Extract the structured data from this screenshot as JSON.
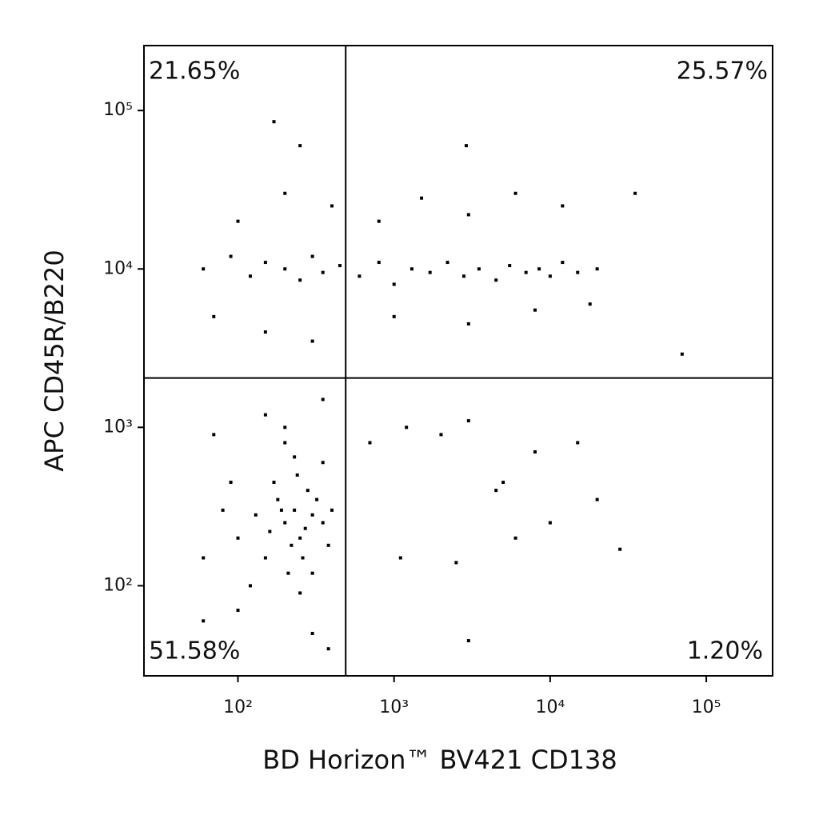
{
  "chart_data": {
    "type": "scatter",
    "x_label": "BD Horizon™ BV421 CD138",
    "y_label": "APC CD45R/B220",
    "log_x": true,
    "log_y": true,
    "grid": false,
    "color": "#000000",
    "xlim": [
      25,
      266000
    ],
    "ylim": [
      27,
      257000
    ],
    "xticks": [
      {
        "value": 100,
        "label": "10²"
      },
      {
        "value": 1000,
        "label": "10³"
      },
      {
        "value": 10000,
        "label": "10⁴"
      },
      {
        "value": 100000,
        "label": "10⁵"
      }
    ],
    "yticks": [
      {
        "value": 100,
        "label": "10²"
      },
      {
        "value": 1000,
        "label": "10³"
      },
      {
        "value": 10000,
        "label": "10⁴"
      },
      {
        "value": 100000,
        "label": "10⁵"
      }
    ],
    "gates": {
      "x": 490,
      "y": 2050
    },
    "quadrant_labels": {
      "upper_left": "21.65%",
      "upper_right": "25.57%",
      "lower_left": "51.58%",
      "lower_right": "1.20%"
    },
    "x": [
      200,
      230,
      250,
      180,
      300,
      220,
      160,
      280,
      260,
      190,
      350,
      240,
      210,
      150,
      320,
      270,
      130,
      400,
      170,
      230,
      100,
      80,
      60,
      120,
      300,
      350,
      200,
      90,
      250,
      380,
      60,
      100,
      300,
      380,
      150,
      350,
      70,
      200,
      60,
      90,
      120,
      150,
      200,
      250,
      300,
      350,
      450,
      600,
      800,
      1000,
      1300,
      1700,
      2200,
      2800,
      3500,
      4500,
      5500,
      7000,
      8500,
      10000,
      12000,
      15000,
      20000,
      100,
      200,
      400,
      800,
      1500,
      3000,
      6000,
      12000,
      70,
      150,
      300,
      1000,
      3000,
      8000,
      18000,
      170,
      250,
      2900,
      35000,
      70000,
      700,
      1200,
      2000,
      3000,
      4500,
      6000,
      8000,
      15000,
      20000,
      28000,
      1100,
      2500,
      5000,
      10000,
      3000
    ],
    "values": [
      250,
      300,
      200,
      350,
      280,
      180,
      220,
      400,
      150,
      300,
      250,
      500,
      120,
      150,
      350,
      230,
      280,
      300,
      450,
      650,
      200,
      300,
      150,
      100,
      120,
      600,
      800,
      450,
      90,
      180,
      60,
      70,
      50,
      40,
      1200,
      1500,
      900,
      1000,
      10000,
      12000,
      9000,
      11000,
      10000,
      8500,
      12000,
      9500,
      10500,
      9000,
      11000,
      8000,
      10000,
      9500,
      11000,
      9000,
      10000,
      8500,
      10500,
      9500,
      10000,
      9000,
      11000,
      9500,
      10000,
      20000,
      30000,
      25000,
      20000,
      28000,
      22000,
      30000,
      25000,
      5000,
      4000,
      3500,
      5000,
      4500,
      5500,
      6000,
      85000,
      60000,
      60000,
      30000,
      2900,
      800,
      1000,
      900,
      1100,
      400,
      200,
      700,
      800,
      350,
      170,
      150,
      140,
      450,
      250,
      45
    ]
  }
}
